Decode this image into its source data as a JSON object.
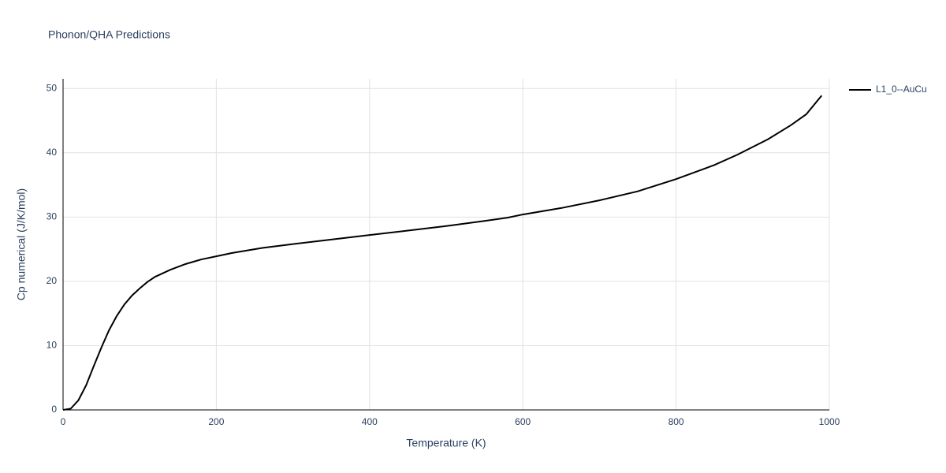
{
  "chart_data": {
    "type": "line",
    "title": "Phonon/QHA Predictions",
    "x_label": "Temperature (K)",
    "y_label": "Cp numerical (J/K/mol)",
    "x": [
      0,
      10,
      20,
      30,
      40,
      50,
      60,
      70,
      80,
      90,
      100,
      110,
      120,
      140,
      160,
      180,
      200,
      220,
      260,
      300,
      350,
      400,
      450,
      500,
      550,
      580,
      600,
      650,
      700,
      750,
      800,
      850,
      880,
      920,
      950,
      970,
      990
    ],
    "series": [
      {
        "name": "L1_0--AuCu",
        "color": "#000000",
        "values": [
          0,
          0.2,
          1.5,
          3.8,
          6.8,
          9.7,
          12.4,
          14.6,
          16.4,
          17.8,
          18.9,
          19.9,
          20.7,
          21.8,
          22.7,
          23.4,
          23.9,
          24.4,
          25.2,
          25.8,
          26.5,
          27.2,
          27.9,
          28.6,
          29.4,
          29.9,
          30.4,
          31.4,
          32.6,
          34.0,
          35.9,
          38.1,
          39.7,
          42.1,
          44.3,
          46.0,
          48.9
        ]
      }
    ],
    "xlim": [
      0,
      1000
    ],
    "xticks": [
      0,
      200,
      400,
      600,
      800,
      1000
    ],
    "ylim": [
      0,
      51.5
    ],
    "yticks": [
      0,
      10,
      20,
      30,
      40,
      50
    ],
    "grid": true
  }
}
